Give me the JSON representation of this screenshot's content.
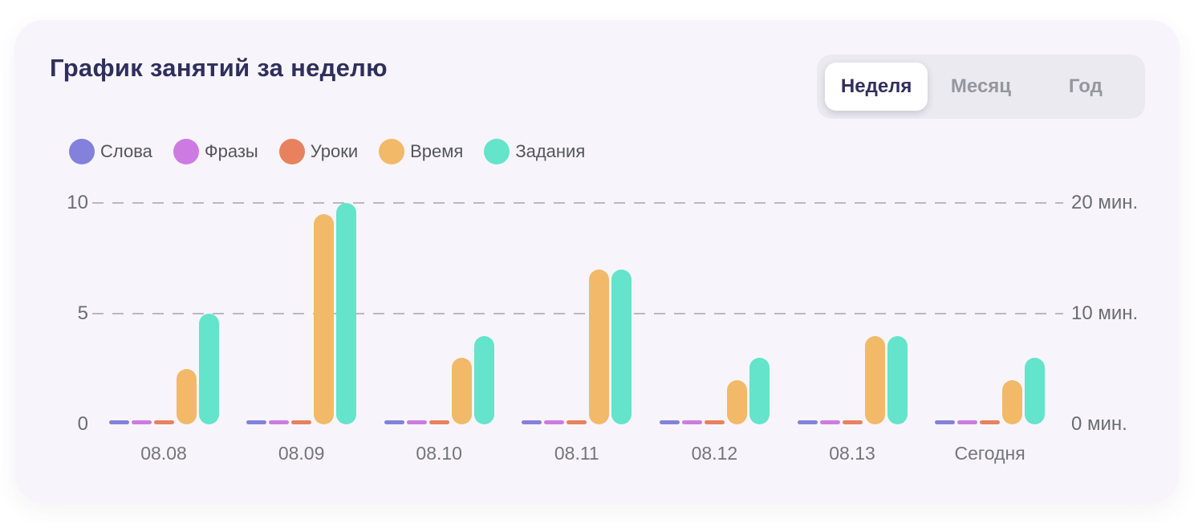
{
  "header": {
    "title": "График занятий за неделю"
  },
  "tabs": {
    "items": [
      {
        "key": "week",
        "label": "Неделя",
        "active": true
      },
      {
        "key": "month",
        "label": "Месяц",
        "active": false
      },
      {
        "key": "year",
        "label": "Год",
        "active": false
      }
    ]
  },
  "chart_data": {
    "type": "bar",
    "title": "График занятий за неделю",
    "categories": [
      "08.08",
      "08.09",
      "08.10",
      "08.11",
      "08.12",
      "08.13",
      "Сегодня"
    ],
    "series": [
      {
        "key": "words",
        "name": "Слова",
        "color": "#8381DC",
        "axis": "left",
        "values": [
          0,
          0,
          0,
          0,
          0,
          0,
          0
        ]
      },
      {
        "key": "phrases",
        "name": "Фразы",
        "color": "#CD7BE2",
        "axis": "left",
        "values": [
          0,
          0,
          0,
          0,
          0,
          0,
          0
        ]
      },
      {
        "key": "lessons",
        "name": "Уроки",
        "color": "#E8815E",
        "axis": "left",
        "values": [
          0,
          0,
          0,
          0,
          0,
          0,
          0
        ]
      },
      {
        "key": "time",
        "name": "Время",
        "color": "#F2B968",
        "axis": "right",
        "values": [
          5,
          19,
          6,
          14,
          4,
          8,
          4
        ]
      },
      {
        "key": "tasks",
        "name": "Задания",
        "color": "#63E4CB",
        "axis": "left",
        "values": [
          5,
          10,
          4,
          7,
          3,
          4,
          3
        ]
      }
    ],
    "left_axis": {
      "max": 10,
      "label_unit": ""
    },
    "right_axis": {
      "max": 20,
      "label_unit": "мин."
    },
    "ticks": [
      {
        "value": 10,
        "left": "10",
        "right": "20 мин.",
        "grid": true
      },
      {
        "value": 5,
        "left": "5",
        "right": "10 мин.",
        "grid": true
      },
      {
        "value": 0,
        "left": "0",
        "right": "0 мин.",
        "grid": false
      }
    ],
    "grid": "horizontal dashed",
    "legend_position": "top-left"
  }
}
